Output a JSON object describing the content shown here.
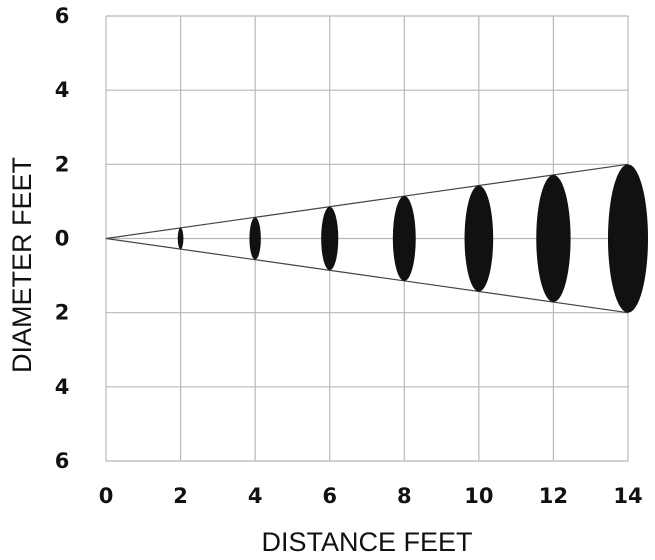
{
  "chart_data": {
    "type": "scatter",
    "title": "",
    "xlabel": "DISTANCE FEET",
    "ylabel": "DIAMETER FEET",
    "xlim": [
      0,
      14
    ],
    "ylim": [
      -6,
      6
    ],
    "x_ticks": [
      {
        "value": 0,
        "label": "0"
      },
      {
        "value": 2,
        "label": "2"
      },
      {
        "value": 4,
        "label": "4"
      },
      {
        "value": 6,
        "label": "6"
      },
      {
        "value": 8,
        "label": "8"
      },
      {
        "value": 10,
        "label": "10"
      },
      {
        "value": 12,
        "label": "12"
      },
      {
        "value": 14,
        "label": "14"
      }
    ],
    "y_ticks": [
      {
        "value": 6,
        "label": "6"
      },
      {
        "value": 4,
        "label": "4"
      },
      {
        "value": 2,
        "label": "2"
      },
      {
        "value": 0,
        "label": "0"
      },
      {
        "value": -2,
        "label": "2"
      },
      {
        "value": -4,
        "label": "4"
      },
      {
        "value": -6,
        "label": "6"
      }
    ],
    "grid": true,
    "cone_lines": [
      {
        "from": [
          0,
          0
        ],
        "to": [
          14,
          2
        ]
      },
      {
        "from": [
          0,
          0
        ],
        "to": [
          14,
          -2
        ]
      }
    ],
    "beam_spots": [
      {
        "distance": 2,
        "diameter": 0.57
      },
      {
        "distance": 4,
        "diameter": 1.14
      },
      {
        "distance": 6,
        "diameter": 1.71
      },
      {
        "distance": 8,
        "diameter": 2.29
      },
      {
        "distance": 10,
        "diameter": 2.86
      },
      {
        "distance": 12,
        "diameter": 3.43
      },
      {
        "distance": 14,
        "diameter": 4.0
      }
    ],
    "colors": {
      "spot": "#111111",
      "grid": "#b8b8b8",
      "line": "#444444"
    }
  }
}
